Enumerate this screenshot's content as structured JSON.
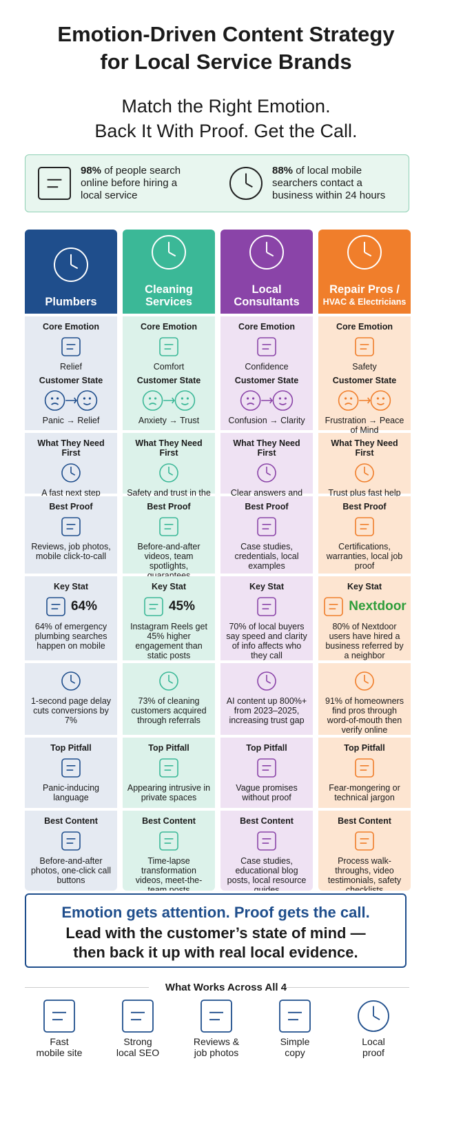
{
  "title": [
    "Emotion-Driven Content Strategy",
    "for Local Service Brands"
  ],
  "subtitle": [
    "Match the Right Emotion.",
    "Back It With Proof. Get the Call."
  ],
  "stats": [
    {
      "bold": "98%",
      "text": "of people search online before hiring a local service"
    },
    {
      "bold": "88%",
      "text": "of local mobile searchers contact a business within 24 hours"
    }
  ],
  "columns": [
    {
      "name": [
        "Plumbers"
      ],
      "color": "#1f4e8c",
      "bg": "#e5eaf2",
      "sections": [
        {
          "label": "Core Emotion",
          "text": "Relief"
        },
        {
          "label": "Customer State",
          "text": "Panic → Relief"
        },
        {
          "label": "What They Need First",
          "text": "A fast next step"
        },
        {
          "label": "Best Proof",
          "text": "Reviews, job photos, mobile click-to-call"
        },
        {
          "label": "Key Stat",
          "stat": "64%",
          "text": "64% of emergency plumbing searches happen on mobile"
        },
        {
          "text": "1-second page delay cuts conversions by 7%"
        },
        {
          "label": "Top Pitfall",
          "text": "Panic-inducing language"
        },
        {
          "label": "Best Content",
          "text": "Before-and-after photos, one-click call buttons"
        }
      ]
    },
    {
      "name": [
        "Cleaning",
        "Services"
      ],
      "color": "#3bb897",
      "bg": "#dcf2ea",
      "sections": [
        {
          "label": "Core Emotion",
          "text": "Comfort"
        },
        {
          "label": "Customer State",
          "text": "Anxiety → Trust"
        },
        {
          "label": "What They Need First",
          "text": "Safety and trust in the team"
        },
        {
          "label": "Best Proof",
          "text": "Before-and-after videos, team spotlights, guarantees"
        },
        {
          "label": "Key Stat",
          "stat": "45%",
          "text": "Instagram Reels get 45% higher engagement than static posts"
        },
        {
          "text": "73% of cleaning customers acquired through referrals"
        },
        {
          "label": "Top Pitfall",
          "text": "Appearing intrusive in private spaces"
        },
        {
          "label": "Best Content",
          "text": "Time-lapse transformation videos, meet-the-team posts"
        }
      ]
    },
    {
      "name": [
        "Local",
        "Consultants"
      ],
      "color": "#8a44a8",
      "bg": "#efe2f3",
      "sections": [
        {
          "label": "Core Emotion",
          "text": "Confidence"
        },
        {
          "label": "Customer State",
          "text": "Confusion → Clarity"
        },
        {
          "label": "What They Need First",
          "text": "Clear answers and proof of expertise"
        },
        {
          "label": "Best Proof",
          "text": "Case studies, credentials, local examples"
        },
        {
          "label": "Key Stat",
          "text": "70% of local buyers say speed and clarity of info affects who they call"
        },
        {
          "text": "AI content up 800%+ from 2023–2025, increasing trust gap"
        },
        {
          "label": "Top Pitfall",
          "text": "Vague promises without proof"
        },
        {
          "label": "Best Content",
          "text": "Case studies, educational blog posts, local resource guides"
        }
      ]
    },
    {
      "name": [
        "Repair Pros /",
        "HVAC & Electricians"
      ],
      "color": "#f07e2b",
      "bg": "#fde5d1",
      "sections": [
        {
          "label": "Core Emotion",
          "text": "Safety"
        },
        {
          "label": "Customer State",
          "text": "Frustration → Peace of Mind"
        },
        {
          "label": "What They Need First",
          "text": "Trust plus fast help"
        },
        {
          "label": "Best Proof",
          "text": "Certifications, warranties, local job proof"
        },
        {
          "label": "Key Stat",
          "stat": "Nextdoor",
          "text": "80% of Nextdoor users have hired a business referred by a neighbor"
        },
        {
          "text": "91% of homeowners find pros through word-of-mouth then verify online"
        },
        {
          "label": "Top Pitfall",
          "text": "Fear-mongering or technical jargon"
        },
        {
          "label": "Best Content",
          "text": "Process walk-throughs, video testimonials, safety checklists"
        }
      ]
    }
  ],
  "callout": [
    "Emotion gets attention. Proof gets the call.",
    "Lead with the customer’s state of mind —",
    "then back it up with real local evidence."
  ],
  "works_title": "What Works Across All 4",
  "works": [
    [
      "Fast",
      "mobile site"
    ],
    [
      "Strong",
      "local SEO"
    ],
    [
      "Reviews &",
      "job photos"
    ],
    [
      "Simple",
      "copy"
    ],
    [
      "Local",
      "proof"
    ]
  ]
}
